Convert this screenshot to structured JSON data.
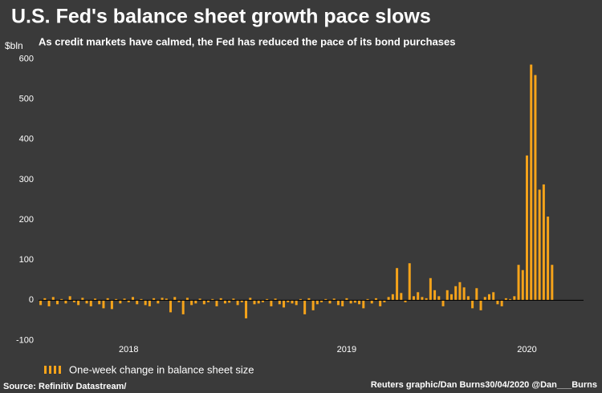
{
  "chart_data": {
    "type": "bar",
    "title": "U.S. Fed's balance sheet growth pace slows",
    "subtitle": "As credit markets have calmed, the Fed has reduced the pace of its bond purchases",
    "y_unit": "$bln",
    "source": "Source: Refinitiv Datastream/",
    "credit": "Reuters graphic/Dan Burns30/04/2020 @Dan___Burns",
    "categories": [
      null,
      null,
      null,
      null,
      null,
      null,
      null,
      null,
      null,
      null,
      null,
      null,
      null,
      null,
      null,
      null,
      null,
      null,
      null,
      null,
      null,
      "2018",
      null,
      null,
      null,
      null,
      null,
      null,
      null,
      null,
      null,
      null,
      null,
      null,
      null,
      null,
      null,
      null,
      null,
      null,
      null,
      null,
      null,
      null,
      null,
      null,
      null,
      null,
      null,
      null,
      null,
      null,
      null,
      null,
      null,
      null,
      null,
      null,
      null,
      null,
      null,
      null,
      null,
      null,
      null,
      null,
      null,
      null,
      null,
      null,
      null,
      null,
      null,
      "2019",
      null,
      null,
      null,
      null,
      null,
      null,
      null,
      null,
      null,
      null,
      null,
      null,
      null,
      null,
      null,
      null,
      null,
      null,
      null,
      null,
      null,
      null,
      null,
      null,
      null,
      null,
      null,
      null,
      null,
      null,
      null,
      null,
      null,
      null,
      null,
      null,
      null,
      null,
      null,
      null,
      null,
      null,
      "2020",
      null,
      null,
      null,
      null,
      null,
      null,
      null,
      null,
      null,
      null,
      null,
      null,
      null
    ],
    "series": [
      {
        "name": "One-week change in balance sheet size",
        "color": "#f5a31a",
        "values": [
          -12,
          5,
          -15,
          8,
          -10,
          3,
          -8,
          10,
          -5,
          -12,
          6,
          -8,
          -15,
          4,
          -10,
          -20,
          5,
          -22,
          3,
          -8,
          4,
          -5,
          8,
          -10,
          3,
          -12,
          -15,
          5,
          -8,
          6,
          4,
          -30,
          8,
          -5,
          -35,
          6,
          -12,
          -8,
          4,
          -10,
          -5,
          3,
          -15,
          5,
          -8,
          -6,
          4,
          -12,
          -5,
          -45,
          6,
          -10,
          -8,
          -5,
          3,
          -15,
          4,
          -10,
          -18,
          -5,
          -8,
          -12,
          3,
          -35,
          5,
          -25,
          -10,
          -5,
          3,
          -8,
          4,
          -12,
          -15,
          5,
          -8,
          -6,
          -10,
          -20,
          3,
          -8,
          5,
          -15,
          -5,
          8,
          15,
          80,
          18,
          -5,
          92,
          10,
          20,
          8,
          5,
          55,
          25,
          10,
          -15,
          25,
          15,
          35,
          45,
          32,
          10,
          -20,
          30,
          -25,
          8,
          15,
          20,
          -10,
          -15,
          5,
          3,
          10,
          88,
          75,
          360,
          586,
          560,
          275,
          288,
          208,
          88,
          null,
          null,
          null,
          null,
          null,
          null,
          null
        ]
      }
    ],
    "ylim": [
      -115,
      605
    ],
    "yticks": [
      -100,
      0,
      100,
      200,
      300,
      400,
      500,
      600
    ],
    "grid": false
  }
}
